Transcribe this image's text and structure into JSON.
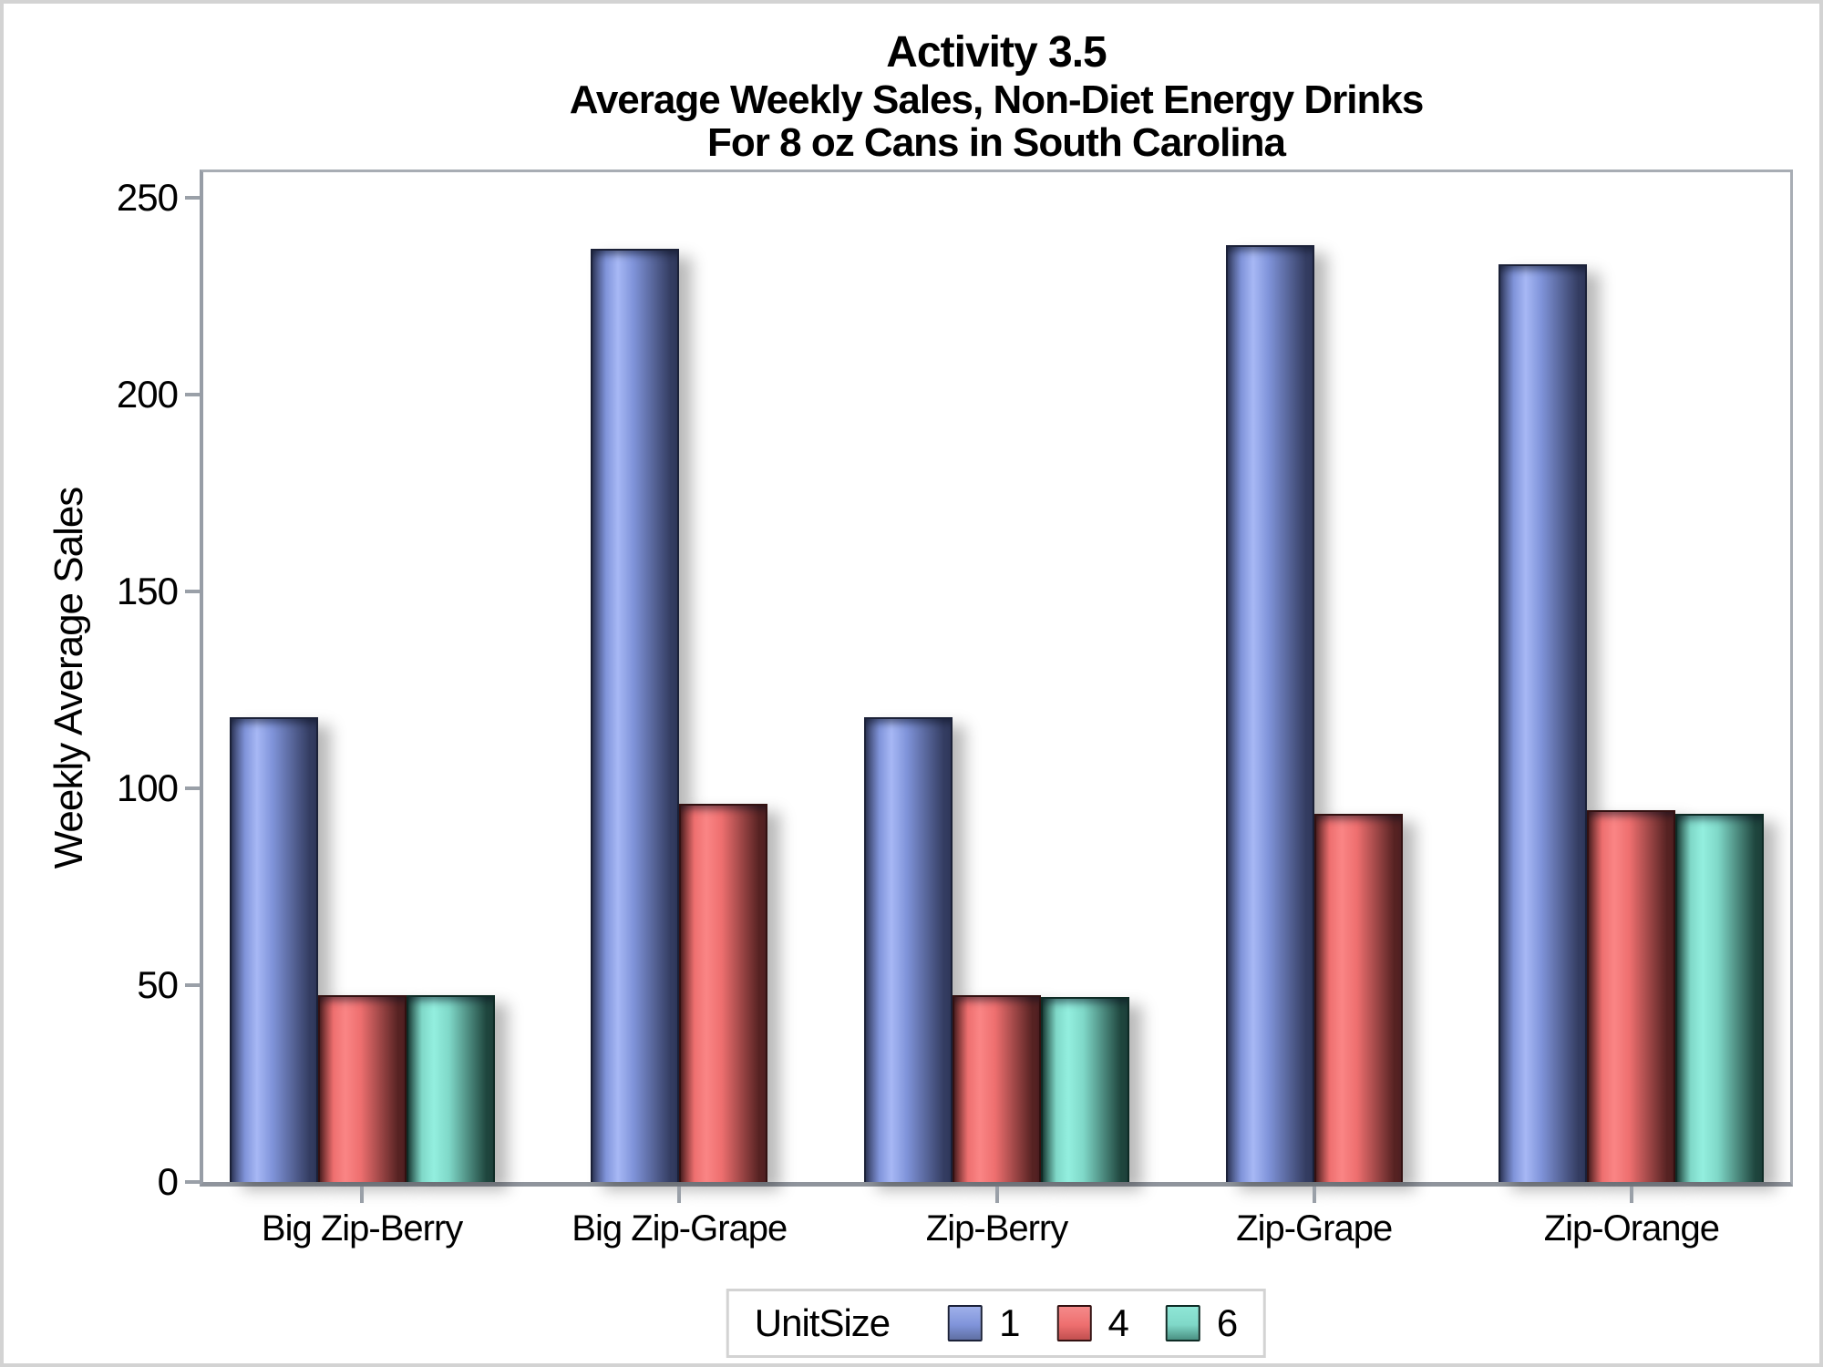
{
  "figure": {
    "background": "#ffffff",
    "border_color": "#d3d3d3",
    "axis_color": "#9aa0a8"
  },
  "chart_data": {
    "type": "bar",
    "title": "Activity 3.5",
    "subtitle_lines": [
      "Average Weekly Sales, Non-Diet Energy Drinks",
      "For 8 oz Cans in South Carolina"
    ],
    "ylabel": "Weekly Average Sales",
    "xlabel": "",
    "ylim": [
      0,
      250
    ],
    "yticks": [
      0,
      50,
      100,
      150,
      200,
      250
    ],
    "grid": false,
    "legend_title": "UnitSize",
    "legend_position": "bottom",
    "categories": [
      "Big Zip-Berry",
      "Big Zip-Grape",
      "Zip-Berry",
      "Zip-Grape",
      "Zip-Orange"
    ],
    "series": [
      {
        "name": "1",
        "values": [
          118,
          237,
          118,
          238,
          233
        ],
        "highlight": "#a7b8f5",
        "mid": "#8094da",
        "shade": "#343d62",
        "border": "#1b2138",
        "swatch_top": "#9fb0ea",
        "swatch_bottom": "#5f6fa3"
      },
      {
        "name": "4",
        "values": [
          47.5,
          96,
          47.5,
          93.5,
          94.5
        ],
        "highlight": "#fa8585",
        "mid": "#ee6f6f",
        "shade": "#572323",
        "border": "#331111",
        "swatch_top": "#f58a8a",
        "swatch_bottom": "#c14f4f"
      },
      {
        "name": "6",
        "values": [
          47.5,
          null,
          47,
          null,
          93.5
        ],
        "highlight": "#93efdf",
        "mid": "#7fd8c8",
        "shade": "#1f463e",
        "border": "#0e2b25",
        "swatch_top": "#8fe6d6",
        "swatch_bottom": "#4a9183"
      }
    ]
  }
}
